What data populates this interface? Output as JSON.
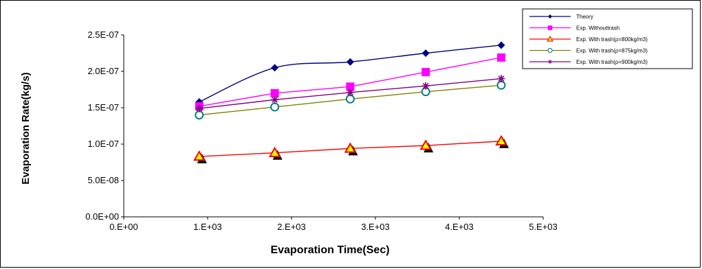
{
  "chart_data": {
    "type": "line",
    "xlabel": "Evaporation Time(Sec)",
    "ylabel": "Evaporation Rate(kg/s)",
    "xlim": [
      0,
      5000
    ],
    "ylim": [
      0,
      2.5e-07
    ],
    "x_ticks": [
      {
        "value": 0,
        "label": "0.E+00"
      },
      {
        "value": 1000,
        "label": "1.E+03"
      },
      {
        "value": 2000,
        "label": "2.E+03"
      },
      {
        "value": 3000,
        "label": "3.E+03"
      },
      {
        "value": 4000,
        "label": "4.E+03"
      },
      {
        "value": 5000,
        "label": "5.E+03"
      }
    ],
    "y_ticks": [
      {
        "value": 0,
        "label": "0.0E+00"
      },
      {
        "value": 5e-08,
        "label": "5.0E-08"
      },
      {
        "value": 1e-07,
        "label": "1.0E-07"
      },
      {
        "value": 1.5e-07,
        "label": "1.5E-07"
      },
      {
        "value": 2e-07,
        "label": "2.0E-07"
      },
      {
        "value": 2.5e-07,
        "label": "2.5E-07"
      }
    ],
    "x": [
      900,
      1800,
      2700,
      3600,
      4500
    ],
    "grid": false,
    "legend_position": "top-right",
    "series": [
      {
        "name": "Theory",
        "color": "#000080",
        "marker": "diamond",
        "smooth": true,
        "values": [
          1.58e-07,
          2.05e-07,
          2.13e-07,
          2.25e-07,
          2.36e-07
        ]
      },
      {
        "name": "Exp. Withouttrash",
        "color": "#ff00ff",
        "marker": "square",
        "smooth": false,
        "values": [
          1.52e-07,
          1.7e-07,
          1.79e-07,
          1.99e-07,
          2.19e-07
        ]
      },
      {
        "name": "Exp. With trash(ρ=800kg/m3)",
        "color": "#ff0000",
        "marker": "triangle",
        "smooth": false,
        "values": [
          8.3e-08,
          8.8e-08,
          9.4e-08,
          9.8e-08,
          1.04e-07
        ]
      },
      {
        "name": "Exp. With trash(ρ=875kg/m3)",
        "color": "#808000",
        "marker": "circle",
        "smooth": false,
        "values": [
          1.4e-07,
          1.51e-07,
          1.62e-07,
          1.72e-07,
          1.81e-07
        ]
      },
      {
        "name": "Exp. With trash(ρ=900kg/m3)",
        "color": "#800080",
        "marker": "asterisk",
        "smooth": false,
        "values": [
          1.49e-07,
          1.61e-07,
          1.71e-07,
          1.8e-07,
          1.9e-07
        ]
      }
    ]
  }
}
